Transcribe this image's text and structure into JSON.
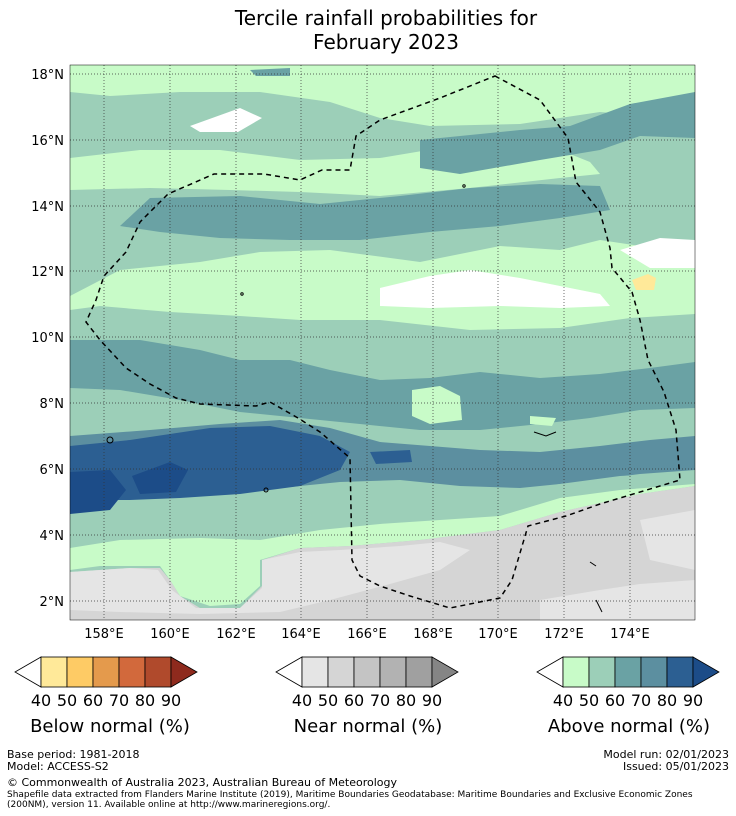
{
  "title": {
    "line1": "Tercile rainfall probabilities for",
    "line2": "February 2023"
  },
  "map": {
    "lat_ticks": [
      "18°N",
      "16°N",
      "14°N",
      "12°N",
      "10°N",
      "8°N",
      "6°N",
      "4°N",
      "2°N"
    ],
    "lon_ticks": [
      "158°E",
      "160°E",
      "162°E",
      "164°E",
      "166°E",
      "168°E",
      "170°E",
      "172°E",
      "174°E"
    ],
    "region_outline": "EEZ boundary (dashed)"
  },
  "legends": {
    "ticks": [
      "40",
      "50",
      "60",
      "70",
      "80",
      "90"
    ],
    "below": {
      "label": "Below normal (%)",
      "colors": [
        "#ffffff",
        "#ffe999",
        "#fecb65",
        "#e49a4c",
        "#d2693c",
        "#b04a2c",
        "#8e2a1d"
      ]
    },
    "near": {
      "label": "Near normal (%)",
      "colors": [
        "#ffffff",
        "#e5e5e5",
        "#d5d5d5",
        "#c4c4c4",
        "#b2b2b2",
        "#a0a0a0",
        "#858585"
      ]
    },
    "above": {
      "label": "Above normal (%)",
      "colors": [
        "#ffffff",
        "#c8fbc8",
        "#9ccfb8",
        "#6aa2a4",
        "#5c8fa0",
        "#2c5f92",
        "#1c4c88"
      ]
    }
  },
  "footer": {
    "base_period": "Base period: 1981-2018",
    "model": "Model: ACCESS-S2",
    "model_run": "Model run: 02/01/2023",
    "issued": "Issued: 05/01/2023",
    "copyright": "© Commonwealth of Australia 2023, Australian Bureau of Meteorology",
    "shapefile_1": "Shapefile data extracted from Flanders Marine Institute (2019), Maritime Boundaries Geodatabase: Maritime Boundaries and Exclusive Economic Zones",
    "shapefile_2": "(200NM), version 11. Available online at http://www.marineregions.org/."
  }
}
